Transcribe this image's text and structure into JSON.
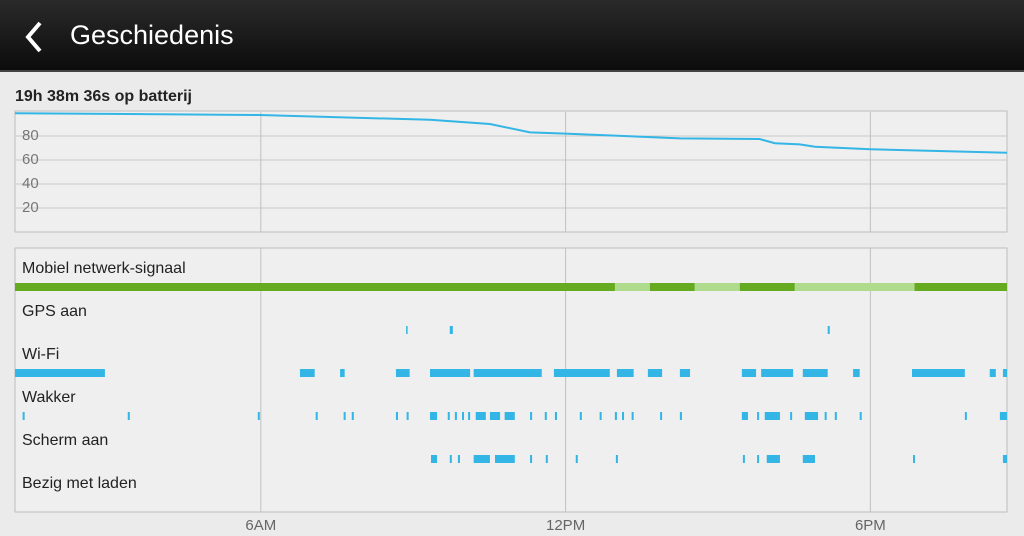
{
  "header": {
    "title": "Geschiedenis"
  },
  "chart_data": [
    {
      "type": "line",
      "title": "19h 38m 36s op batterij",
      "color": "#33b5e5",
      "x": [
        1.16,
        5.98,
        9.33,
        10.51,
        11.3,
        12.0,
        14.25,
        15.82,
        16.12,
        16.61,
        16.91,
        18.0,
        20.69
      ],
      "values": [
        99,
        97.5,
        93.5,
        90,
        83,
        82,
        78,
        77.5,
        74,
        73,
        71,
        69,
        66
      ],
      "xlim": [
        1.16,
        20.69
      ],
      "ylim": [
        0,
        100
      ],
      "yticks": [
        20,
        40,
        60,
        80
      ],
      "xticks": [
        {
          "value": 6,
          "label": "6AM"
        },
        {
          "value": 12,
          "label": "12PM"
        },
        {
          "value": 18,
          "label": "6PM"
        }
      ],
      "grid": true
    },
    {
      "type": "timeline",
      "rows": [
        {
          "label": "Mobiel netwerk-signaal",
          "color": "#66aa22",
          "segments": [
            [
              1.16,
              20.69
            ]
          ],
          "light_color": "#aedc8c",
          "light_segments": [
            [
              12.97,
              13.66
            ],
            [
              14.54,
              15.43
            ],
            [
              16.51,
              18.87
            ]
          ]
        },
        {
          "label": "GPS aan",
          "color": "#33b5e5",
          "segments": [
            [
              8.86,
              8.89
            ],
            [
              9.72,
              9.78
            ],
            [
              17.16,
              17.2
            ]
          ]
        },
        {
          "label": "Wi-Fi",
          "color": "#33b5e5",
          "segments": [
            [
              1.16,
              2.93
            ],
            [
              6.77,
              7.06
            ],
            [
              7.56,
              7.65
            ],
            [
              8.66,
              8.93
            ],
            [
              9.33,
              10.12
            ],
            [
              10.19,
              11.53
            ],
            [
              11.77,
              12.87
            ],
            [
              13.01,
              13.34
            ],
            [
              13.62,
              13.9
            ],
            [
              14.25,
              14.45
            ],
            [
              15.47,
              15.75
            ],
            [
              15.85,
              16.48
            ],
            [
              16.67,
              17.16
            ],
            [
              17.66,
              17.79
            ],
            [
              18.82,
              19.86
            ],
            [
              20.35,
              20.47
            ],
            [
              20.61,
              20.69
            ]
          ]
        },
        {
          "label": "Wakker",
          "color": "#33b5e5",
          "segments": [
            [
              1.31,
              1.35
            ],
            [
              3.38,
              3.42
            ],
            [
              5.94,
              5.98
            ],
            [
              7.08,
              7.12
            ],
            [
              7.63,
              7.67
            ],
            [
              7.79,
              7.83
            ],
            [
              8.66,
              8.7
            ],
            [
              8.87,
              8.91
            ],
            [
              9.33,
              9.47
            ],
            [
              9.68,
              9.72
            ],
            [
              9.82,
              9.86
            ],
            [
              9.96,
              10.0
            ],
            [
              10.08,
              10.12
            ],
            [
              10.23,
              10.43
            ],
            [
              10.51,
              10.71
            ],
            [
              10.8,
              11.0
            ],
            [
              11.3,
              11.34
            ],
            [
              11.59,
              11.63
            ],
            [
              11.79,
              11.83
            ],
            [
              12.28,
              12.32
            ],
            [
              12.67,
              12.71
            ],
            [
              12.97,
              13.01
            ],
            [
              13.11,
              13.15
            ],
            [
              13.3,
              13.34
            ],
            [
              13.86,
              13.9
            ],
            [
              14.25,
              14.29
            ],
            [
              15.47,
              15.59
            ],
            [
              15.77,
              15.81
            ],
            [
              15.92,
              16.22
            ],
            [
              16.42,
              16.46
            ],
            [
              16.71,
              16.97
            ],
            [
              17.1,
              17.14
            ],
            [
              17.3,
              17.34
            ],
            [
              17.79,
              17.83
            ],
            [
              19.86,
              19.9
            ],
            [
              20.55,
              20.69
            ]
          ]
        },
        {
          "label": "Scherm aan",
          "color": "#33b5e5",
          "segments": [
            [
              9.35,
              9.47
            ],
            [
              9.72,
              9.76
            ],
            [
              9.88,
              9.92
            ],
            [
              10.19,
              10.51
            ],
            [
              10.61,
              11.0
            ],
            [
              11.3,
              11.34
            ],
            [
              11.61,
              11.65
            ],
            [
              12.2,
              12.24
            ],
            [
              12.99,
              13.03
            ],
            [
              15.49,
              15.53
            ],
            [
              15.77,
              15.81
            ],
            [
              15.96,
              16.22
            ],
            [
              16.67,
              16.91
            ],
            [
              18.84,
              18.88
            ],
            [
              20.61,
              20.69
            ]
          ]
        },
        {
          "label": "Bezig met laden",
          "color": "#33b5e5",
          "segments": []
        }
      ]
    }
  ]
}
